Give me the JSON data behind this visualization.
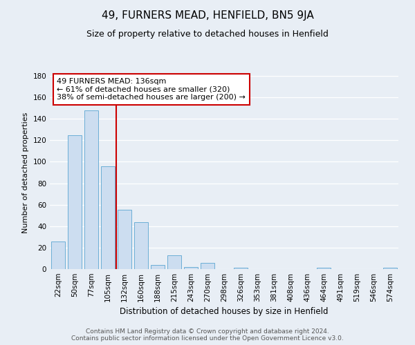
{
  "title": "49, FURNERS MEAD, HENFIELD, BN5 9JA",
  "subtitle": "Size of property relative to detached houses in Henfield",
  "xlabel": "Distribution of detached houses by size in Henfield",
  "ylabel": "Number of detached properties",
  "bar_labels": [
    "22sqm",
    "50sqm",
    "77sqm",
    "105sqm",
    "132sqm",
    "160sqm",
    "188sqm",
    "215sqm",
    "243sqm",
    "270sqm",
    "298sqm",
    "326sqm",
    "353sqm",
    "381sqm",
    "408sqm",
    "436sqm",
    "464sqm",
    "491sqm",
    "519sqm",
    "546sqm",
    "574sqm"
  ],
  "bar_heights": [
    26,
    125,
    148,
    96,
    55,
    44,
    4,
    13,
    2,
    6,
    0,
    1,
    0,
    0,
    0,
    0,
    1,
    0,
    0,
    0,
    1
  ],
  "bar_color": "#ccddf0",
  "bar_edge_color": "#6baed6",
  "vline_color": "#cc0000",
  "vline_position": 3.5,
  "annotation_text": "49 FURNERS MEAD: 136sqm\n← 61% of detached houses are smaller (320)\n38% of semi-detached houses are larger (200) →",
  "annotation_box_color": "white",
  "annotation_box_edge": "#cc0000",
  "ylim": [
    0,
    180
  ],
  "yticks": [
    0,
    20,
    40,
    60,
    80,
    100,
    120,
    140,
    160,
    180
  ],
  "footer_line1": "Contains HM Land Registry data © Crown copyright and database right 2024.",
  "footer_line2": "Contains public sector information licensed under the Open Government Licence v3.0.",
  "bg_color": "#e8eef5",
  "plot_bg_color": "#e8eef5",
  "grid_color": "white",
  "title_fontsize": 11,
  "subtitle_fontsize": 9,
  "xlabel_fontsize": 8.5,
  "ylabel_fontsize": 8,
  "tick_fontsize": 7.5,
  "footer_fontsize": 6.5,
  "annotation_fontsize": 8
}
